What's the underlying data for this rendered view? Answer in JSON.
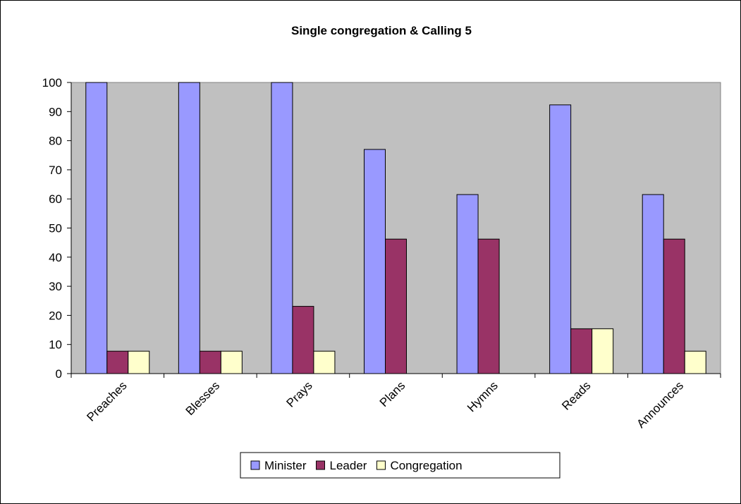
{
  "chart_data": {
    "type": "bar",
    "title": "Single congregation & Calling 5",
    "xlabel": "",
    "ylabel": "",
    "categories": [
      "Preaches",
      "Blesses",
      "Prays",
      "Plans",
      "Hymns",
      "Reads",
      "Announces"
    ],
    "series": [
      {
        "name": "Minister",
        "color": "#9999ff",
        "values": [
          100,
          100,
          100,
          77,
          61.5,
          92.3,
          61.5
        ]
      },
      {
        "name": "Leader",
        "color": "#993366",
        "values": [
          7.7,
          7.7,
          23.1,
          46.2,
          46.2,
          15.4,
          46.2
        ]
      },
      {
        "name": "Congregation",
        "color": "#ffffcc",
        "values": [
          7.7,
          7.7,
          7.7,
          0,
          0,
          15.4,
          7.7
        ]
      }
    ],
    "ylim": [
      0,
      100
    ],
    "yticks": [
      0,
      10,
      20,
      30,
      40,
      50,
      60,
      70,
      80,
      90,
      100
    ],
    "plot_background": "#c0c0c0",
    "grid": false,
    "legend_position": "bottom"
  }
}
